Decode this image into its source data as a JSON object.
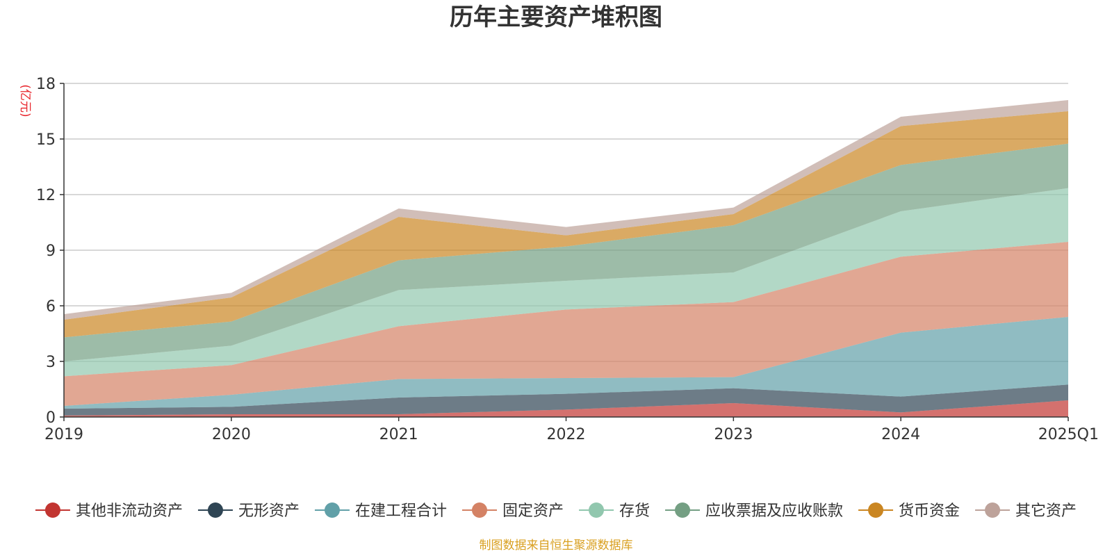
{
  "chart_data": {
    "type": "area",
    "stacked": true,
    "title": "历年主要资产堆积图",
    "unit_label": "(亿元)",
    "source_note": "制图数据来自恒生聚源数据库",
    "categories": [
      "2019",
      "2020",
      "2021",
      "2022",
      "2023",
      "2024",
      "2025Q1"
    ],
    "ylim": [
      0,
      18
    ],
    "yticks": [
      0,
      3,
      6,
      9,
      12,
      15,
      18
    ],
    "grid": true,
    "legend_position": "bottom",
    "series": [
      {
        "name": "其他非流动资产",
        "color": "#c23531",
        "values": [
          0.08,
          0.15,
          0.15,
          0.4,
          0.75,
          0.25,
          0.9
        ]
      },
      {
        "name": "无形资产",
        "color": "#2f4554",
        "values": [
          0.37,
          0.4,
          0.9,
          0.85,
          0.8,
          0.85,
          0.85
        ]
      },
      {
        "name": "在建工程合计",
        "color": "#61a0a8",
        "values": [
          0.15,
          0.65,
          1.0,
          0.85,
          0.6,
          3.45,
          3.65
        ]
      },
      {
        "name": "固定资产",
        "color": "#d48265",
        "values": [
          1.6,
          1.6,
          2.85,
          3.7,
          4.05,
          4.1,
          4.05
        ]
      },
      {
        "name": "存货",
        "color": "#91c7ae",
        "values": [
          0.8,
          1.05,
          1.95,
          1.55,
          1.6,
          2.45,
          2.9
        ]
      },
      {
        "name": "应收票据及应收账款",
        "color": "#749f83",
        "values": [
          1.3,
          1.3,
          1.6,
          1.85,
          2.55,
          2.5,
          2.4
        ]
      },
      {
        "name": "货币资金",
        "color": "#ca8622",
        "values": [
          0.95,
          1.3,
          2.35,
          0.6,
          0.6,
          2.1,
          1.75
        ]
      },
      {
        "name": "其它资产",
        "color": "#bda29a",
        "values": [
          0.3,
          0.25,
          0.45,
          0.45,
          0.35,
          0.5,
          0.6
        ]
      }
    ]
  }
}
